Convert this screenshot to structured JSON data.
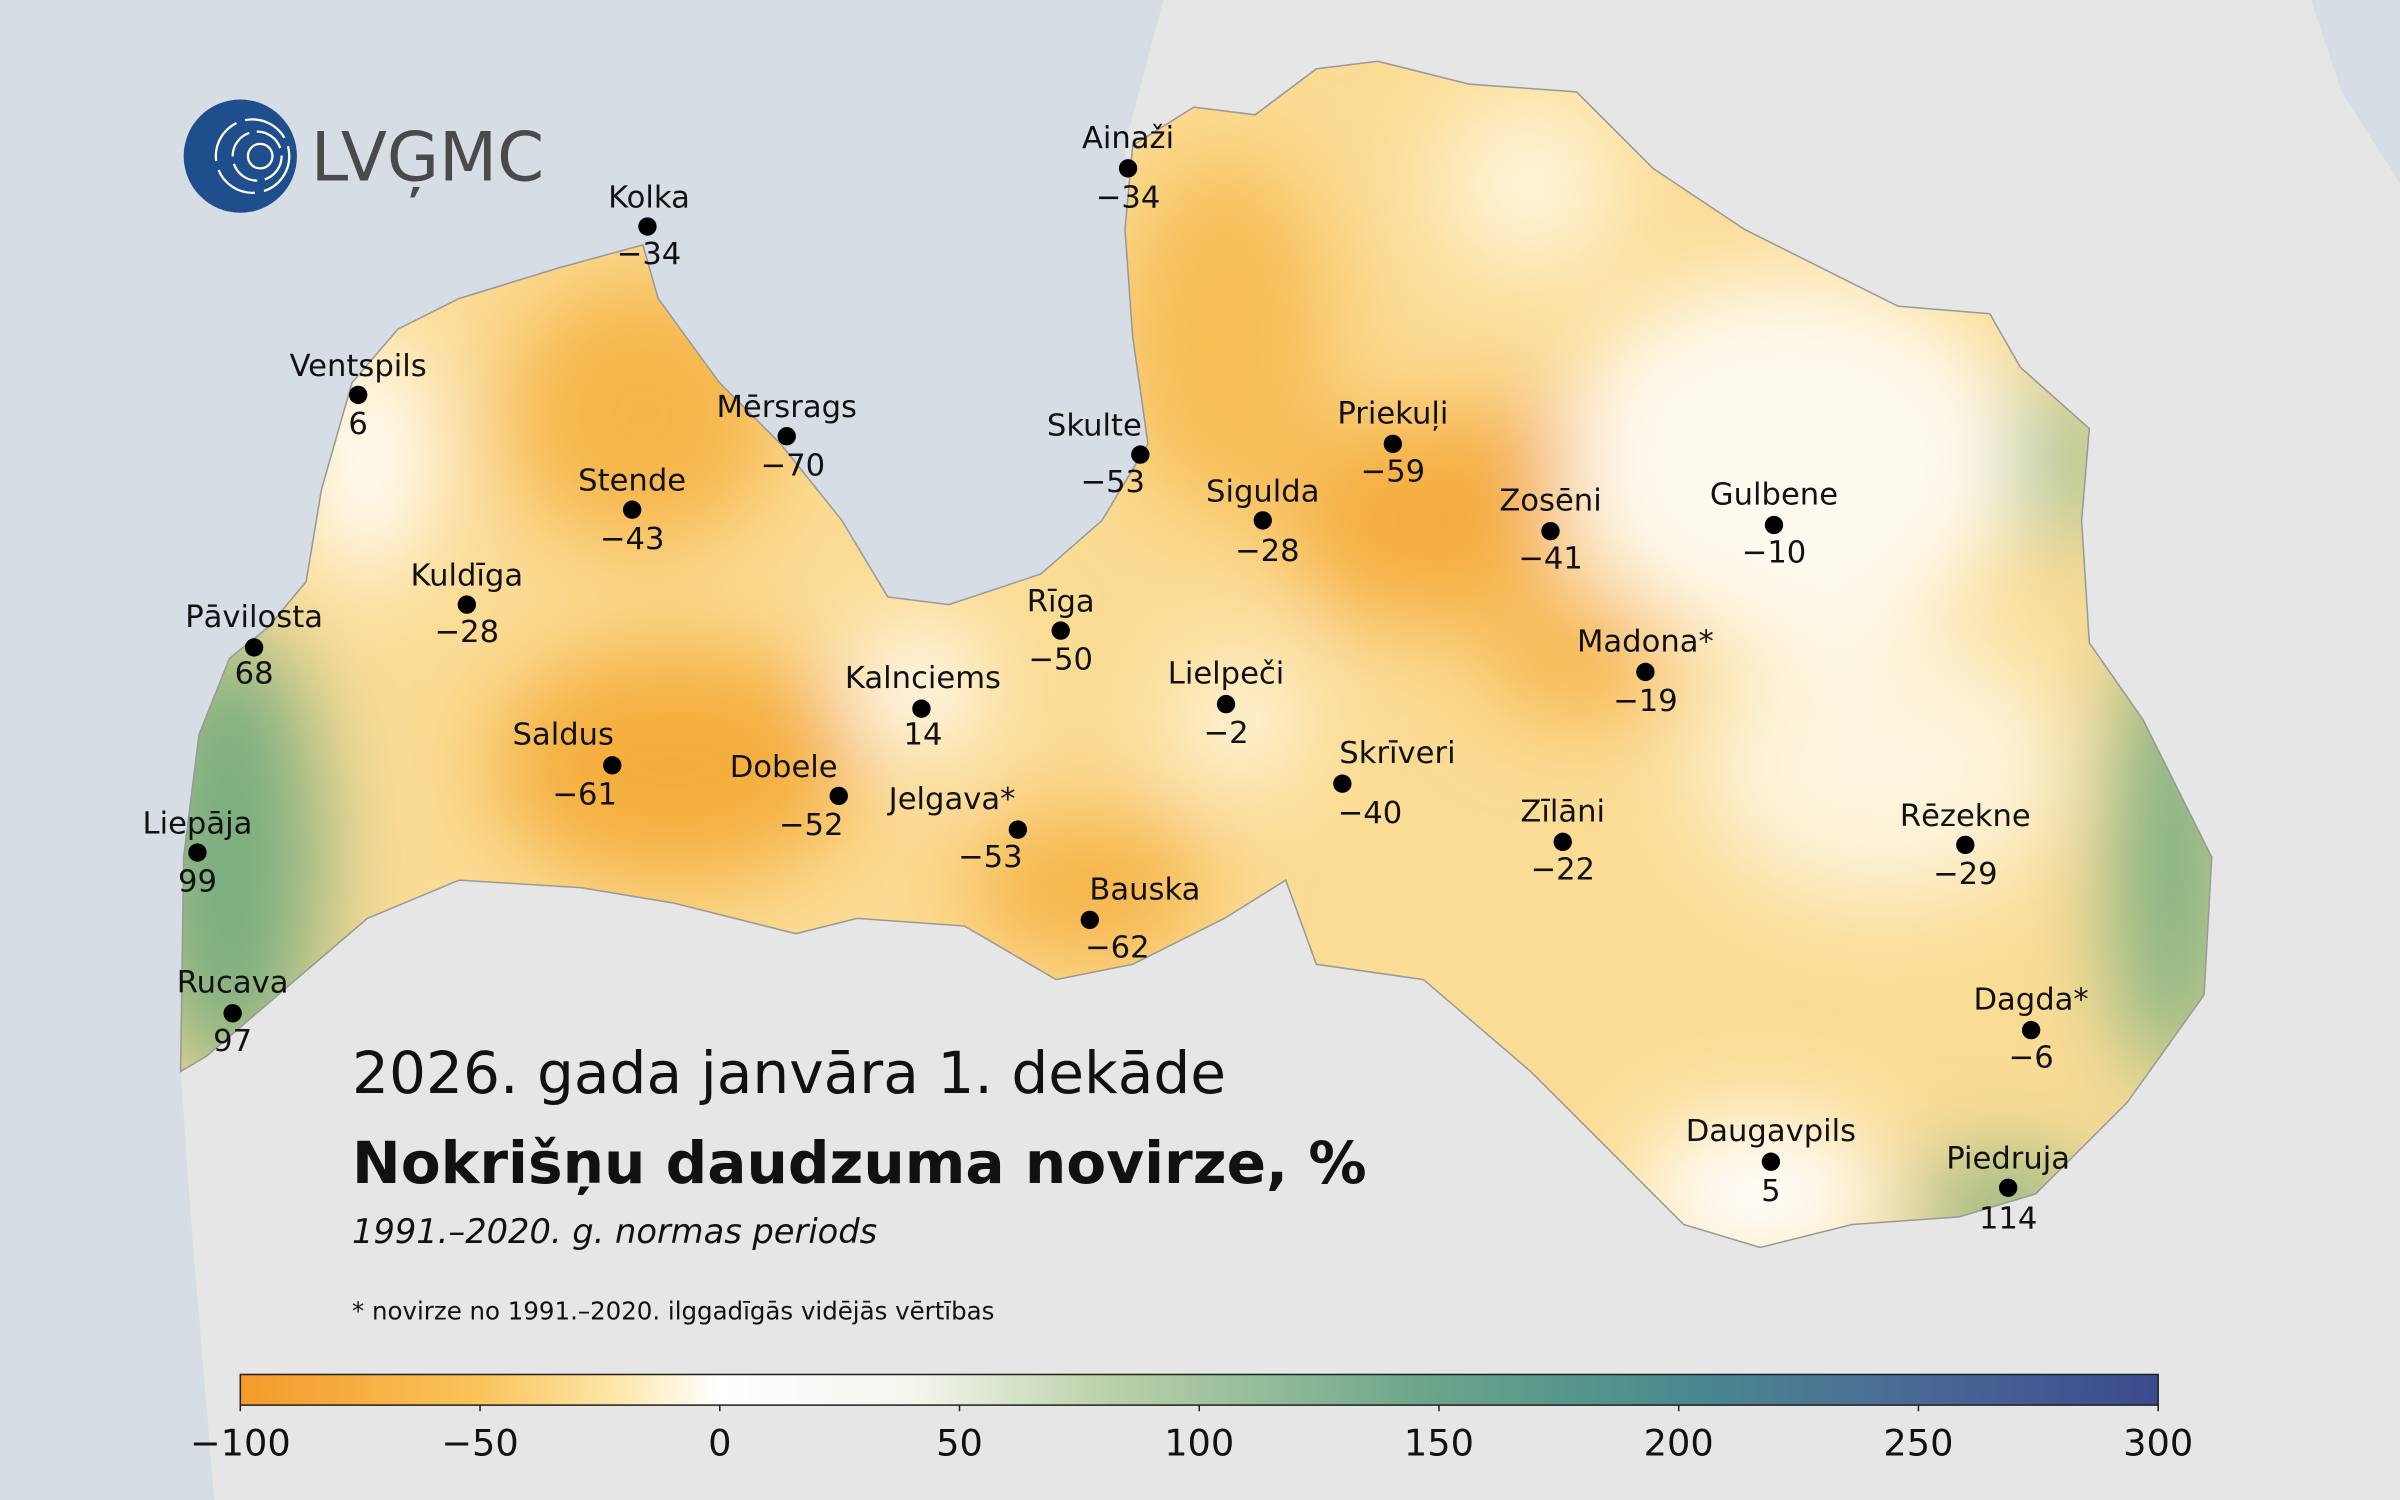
{
  "logo": "LVĢMC",
  "title": "2026. gada janvāra 1. dekāde",
  "subtitle": "Nokrišņu daudzuma novirze, %",
  "period": "1991.–2020. g. normas periods",
  "footnote": "* novirze no 1991.–2020. ilggadīgās vidējās vērtības",
  "stations": [
    {
      "name": "Kolka",
      "value": "−34"
    },
    {
      "name": "Ventspils",
      "value": "6"
    },
    {
      "name": "Mērsrags",
      "value": "−70"
    },
    {
      "name": "Stende",
      "value": "−43"
    },
    {
      "name": "Kuldīga",
      "value": "−28"
    },
    {
      "name": "Pāvilosta",
      "value": "68"
    },
    {
      "name": "Saldus",
      "value": "−61"
    },
    {
      "name": "Dobele",
      "value": "−52"
    },
    {
      "name": "Liepāja",
      "value": "99"
    },
    {
      "name": "Rucava",
      "value": "97"
    },
    {
      "name": "Ainaži",
      "value": "−34"
    },
    {
      "name": "Skulte",
      "value": "−53"
    },
    {
      "name": "Sigulda",
      "value": "−28"
    },
    {
      "name": "Priekuļi",
      "value": "−59"
    },
    {
      "name": "Zosēni",
      "value": "−41"
    },
    {
      "name": "Gulbene",
      "value": "−10"
    },
    {
      "name": "Rīga",
      "value": "−50"
    },
    {
      "name": "Kalnciems",
      "value": "14"
    },
    {
      "name": "Lielpeči",
      "value": "−2"
    },
    {
      "name": "Madona*",
      "value": "−19"
    },
    {
      "name": "Skrīveri",
      "value": "−40"
    },
    {
      "name": "Jelgava*",
      "value": "−53"
    },
    {
      "name": "Bauska",
      "value": "−62"
    },
    {
      "name": "Zīlāni",
      "value": "−22"
    },
    {
      "name": "Rēzekne",
      "value": "−29"
    },
    {
      "name": "Dagda*",
      "value": "−6"
    },
    {
      "name": "Daugavpils",
      "value": "5"
    },
    {
      "name": "Piedruja",
      "value": "114"
    }
  ],
  "colorbar": {
    "lim": [
      -100,
      300
    ],
    "ticks": [
      {
        "value": -100,
        "label": "−100"
      },
      {
        "value": -50,
        "label": "−50"
      },
      0,
      50,
      100,
      150,
      200,
      250,
      300
    ]
  }
}
